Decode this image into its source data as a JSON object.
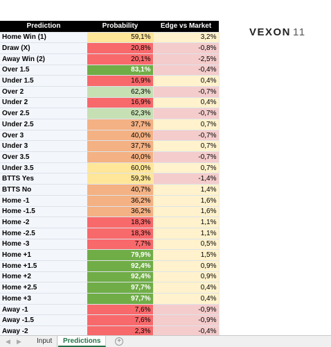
{
  "logo": {
    "name": "VEXON",
    "number": "11"
  },
  "table": {
    "columns": [
      "Prediction",
      "Probability",
      "Edge vs Market"
    ],
    "rows": [
      {
        "prediction": "Home Win (1)",
        "probability": "59,1%",
        "edge": "3,2%",
        "color": "#ffe699"
      },
      {
        "prediction": "Draw (X)",
        "probability": "20,8%",
        "edge": "-0,8%",
        "color": "#f8696b"
      },
      {
        "prediction": "Away Win (2)",
        "probability": "20,1%",
        "edge": "-2,5%",
        "color": "#f8696b"
      },
      {
        "prediction": "Over 1.5",
        "probability": "83,1%",
        "edge": "-0,4%",
        "color": "#70ad47"
      },
      {
        "prediction": "Under 1.5",
        "probability": "16,9%",
        "edge": "0,4%",
        "color": "#f8696b"
      },
      {
        "prediction": "Over 2",
        "probability": "62,3%",
        "edge": "-0,7%",
        "color": "#c6e0b4"
      },
      {
        "prediction": "Under 2",
        "probability": "16,9%",
        "edge": "0,4%",
        "color": "#f8696b"
      },
      {
        "prediction": "Over 2.5",
        "probability": "62,3%",
        "edge": "-0,7%",
        "color": "#c6e0b4"
      },
      {
        "prediction": "Under 2.5",
        "probability": "37,7%",
        "edge": "0,7%",
        "color": "#f4b183"
      },
      {
        "prediction": "Over 3",
        "probability": "40,0%",
        "edge": "-0,7%",
        "color": "#f4b183"
      },
      {
        "prediction": "Under 3",
        "probability": "37,7%",
        "edge": "0,7%",
        "color": "#f4b183"
      },
      {
        "prediction": "Over 3.5",
        "probability": "40,0%",
        "edge": "-0,7%",
        "color": "#f4b183"
      },
      {
        "prediction": "Under 3.5",
        "probability": "60,0%",
        "edge": "0,7%",
        "color": "#ffe699"
      },
      {
        "prediction": "BTTS Yes",
        "probability": "59,3%",
        "edge": "-1,4%",
        "color": "#ffe699"
      },
      {
        "prediction": "BTTS No",
        "probability": "40,7%",
        "edge": "1,4%",
        "color": "#f4b183"
      },
      {
        "prediction": "Home -1",
        "probability": "36,2%",
        "edge": "1,6%",
        "color": "#f4b183"
      },
      {
        "prediction": "Home -1.5",
        "probability": "36,2%",
        "edge": "1,6%",
        "color": "#f4b183"
      },
      {
        "prediction": "Home -2",
        "probability": "18,3%",
        "edge": "1,1%",
        "color": "#f8696b"
      },
      {
        "prediction": "Home -2.5",
        "probability": "18,3%",
        "edge": "1,1%",
        "color": "#f8696b"
      },
      {
        "prediction": "Home -3",
        "probability": "7,7%",
        "edge": "0,5%",
        "color": "#f8696b"
      },
      {
        "prediction": "Home +1",
        "probability": "79,9%",
        "edge": "1,5%",
        "color": "#70ad47"
      },
      {
        "prediction": "Home +1.5",
        "probability": "92,4%",
        "edge": "0,9%",
        "color": "#70ad47"
      },
      {
        "prediction": "Home +2",
        "probability": "92,4%",
        "edge": "0,9%",
        "color": "#70ad47"
      },
      {
        "prediction": "Home +2.5",
        "probability": "97,7%",
        "edge": "0,4%",
        "color": "#70ad47"
      },
      {
        "prediction": "Home +3",
        "probability": "97,7%",
        "edge": "0,4%",
        "color": "#70ad47"
      },
      {
        "prediction": "Away -1",
        "probability": "7,6%",
        "edge": "-0,9%",
        "color": "#f8696b"
      },
      {
        "prediction": "Away -1.5",
        "probability": "7,6%",
        "edge": "-0,9%",
        "color": "#f8696b"
      },
      {
        "prediction": "Away -2",
        "probability": "2,3%",
        "edge": "-0,4%",
        "color": "#f8696b"
      }
    ]
  },
  "tabs": [
    "Input",
    "Predictions"
  ],
  "active_tab": 1
}
